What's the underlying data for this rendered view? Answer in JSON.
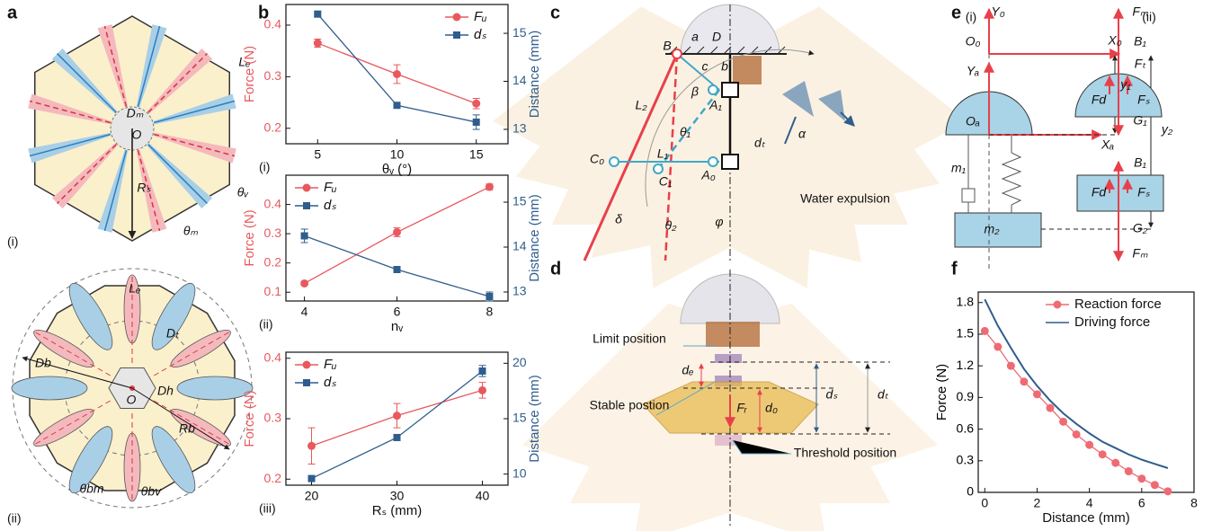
{
  "chart_data": [
    {
      "type": "line",
      "label": "(i)",
      "xlabel": "θᵥ (°)",
      "ylabel": "Force (N)",
      "y2label": "Distance (mm)",
      "x": [
        5,
        10,
        15
      ],
      "xlim": [
        3,
        17
      ],
      "xticks": [
        5,
        10,
        15
      ],
      "ylim": [
        0.17,
        0.44
      ],
      "yticks": [
        0.2,
        0.3,
        0.4
      ],
      "y2lim": [
        12.7,
        15.6
      ],
      "y2ticks": [
        13,
        14,
        15
      ],
      "y_color": "#e8595e",
      "y2_color": "#2f5d8c",
      "legend": "upper right",
      "series": [
        {
          "name": "Fᵤ",
          "color": "#e8595e",
          "marker": "circle",
          "values": [
            0.365,
            0.305,
            0.248
          ],
          "errors": [
            0.008,
            0.018,
            0.01
          ]
        },
        {
          "name": "dₛ",
          "color": "#2f5d8c",
          "marker": "square",
          "axis": "y2",
          "values": [
            15.4,
            13.5,
            13.15
          ],
          "errors": [
            0.05,
            0.05,
            0.15
          ]
        }
      ]
    },
    {
      "type": "line",
      "label": "(ii)",
      "xlabel": "nᵥ",
      "ylabel": "Force (N)",
      "y2label": "Distance (mm)",
      "x": [
        4,
        6,
        8
      ],
      "xlim": [
        3.6,
        8.4
      ],
      "xticks": [
        4,
        6,
        8
      ],
      "ylim": [
        0.07,
        0.5
      ],
      "yticks": [
        0.1,
        0.2,
        0.3,
        0.4
      ],
      "y2lim": [
        12.8,
        15.6
      ],
      "y2ticks": [
        13,
        14,
        15
      ],
      "y_color": "#e8595e",
      "y2_color": "#2f5d8c",
      "legend": "upper left",
      "series": [
        {
          "name": "Fᵤ",
          "color": "#e8595e",
          "marker": "circle",
          "values": [
            0.13,
            0.305,
            0.46
          ],
          "errors": [
            0.005,
            0.015,
            0.01
          ]
        },
        {
          "name": "dₛ",
          "color": "#2f5d8c",
          "marker": "square",
          "axis": "y2",
          "values": [
            14.25,
            13.5,
            12.9
          ],
          "errors": [
            0.15,
            0.03,
            0.1
          ]
        }
      ]
    },
    {
      "type": "line",
      "label": "(iii)",
      "xlabel": "Rₛ (mm)",
      "ylabel": "Force (N)",
      "y2label": "Distance (mm)",
      "x": [
        20,
        30,
        40
      ],
      "xlim": [
        17,
        43
      ],
      "xticks": [
        20,
        30,
        40
      ],
      "ylim": [
        0.19,
        0.41
      ],
      "yticks": [
        0.2,
        0.3,
        0.4
      ],
      "y2lim": [
        9,
        21
      ],
      "y2ticks": [
        10,
        15,
        20
      ],
      "y_color": "#e8595e",
      "y2_color": "#2f5d8c",
      "legend": "upper left",
      "series": [
        {
          "name": "Fᵤ",
          "color": "#e8595e",
          "marker": "circle",
          "values": [
            0.255,
            0.305,
            0.347
          ],
          "errors": [
            0.03,
            0.02,
            0.013
          ]
        },
        {
          "name": "dₛ",
          "color": "#2f5d8c",
          "marker": "square",
          "axis": "y2",
          "values": [
            9.6,
            13.3,
            19.3
          ],
          "errors": [
            0.1,
            0.2,
            0.5
          ]
        }
      ]
    },
    {
      "type": "line",
      "xlabel": "Distance (mm)",
      "ylabel": "Force (N)",
      "x": [
        0,
        0.5,
        1,
        1.5,
        2,
        2.5,
        3,
        3.5,
        4,
        4.5,
        5,
        5.5,
        6,
        6.5,
        7
      ],
      "xlim": [
        -0.25,
        8
      ],
      "xticks": [
        0,
        2,
        4,
        6,
        8
      ],
      "ylim": [
        0,
        1.9
      ],
      "yticks": [
        0,
        0.3,
        0.6,
        0.9,
        1.2,
        1.5,
        1.8
      ],
      "y_color": "#000000",
      "legend": "upper right",
      "series": [
        {
          "name": "Reaction force",
          "color": "#ee6b73",
          "marker": "circle",
          "values": [
            1.53,
            1.38,
            1.2,
            1.05,
            0.93,
            0.8,
            0.67,
            0.55,
            0.45,
            0.36,
            0.28,
            0.2,
            0.13,
            0.07,
            0.01
          ]
        },
        {
          "name": "Driving force",
          "color": "#2f5d8c",
          "marker": "none",
          "values": [
            1.83,
            1.58,
            1.37,
            1.17,
            1.01,
            0.87,
            0.75,
            0.65,
            0.56,
            0.48,
            0.42,
            0.36,
            0.31,
            0.27,
            0.23
          ]
        }
      ]
    }
  ],
  "figure": {
    "panel_labels": [
      "a",
      "b",
      "c",
      "d",
      "e",
      "f"
    ],
    "a": {
      "sub_labels": [
        "(i)",
        "(ii)"
      ],
      "labels_i": [
        "Lₑ",
        "Dₘ",
        "O",
        "Rₛ",
        "θᵥ",
        "θₘ"
      ],
      "labels_ii": [
        "Lₑ",
        "Dₜ",
        "Db",
        "O",
        "Dh",
        "Rb",
        "θbm",
        "θbv"
      ]
    },
    "c": {
      "labels": [
        "B",
        "a",
        "D",
        "c",
        "b",
        "β",
        "L₂",
        "θ₁",
        "A₁",
        "dₜ",
        "α",
        "C₀",
        "L₁",
        "A₀",
        "C₁",
        "φ",
        "δ",
        "θ₂",
        "Water expulsion"
      ]
    },
    "d": {
      "labels": [
        "Limit position",
        "dₑ",
        "Stable postion",
        "Fᵣ",
        "d₀",
        "dₛ",
        "dₜ",
        "Threshold position"
      ]
    },
    "e": {
      "labels": [
        "(i)",
        "Y₀",
        "O₀",
        "X₀",
        "Yₐ",
        "y₁",
        "y₂",
        "Oₐ",
        "Xₐ",
        "m₁",
        "m₂",
        "(ii)",
        "Fₘ",
        "B₁",
        "Fₜ",
        "Fd",
        "Fₛ",
        "G₁",
        "B₁",
        "Fd",
        "Fₛ",
        "G₂",
        "Fₘ"
      ]
    }
  }
}
